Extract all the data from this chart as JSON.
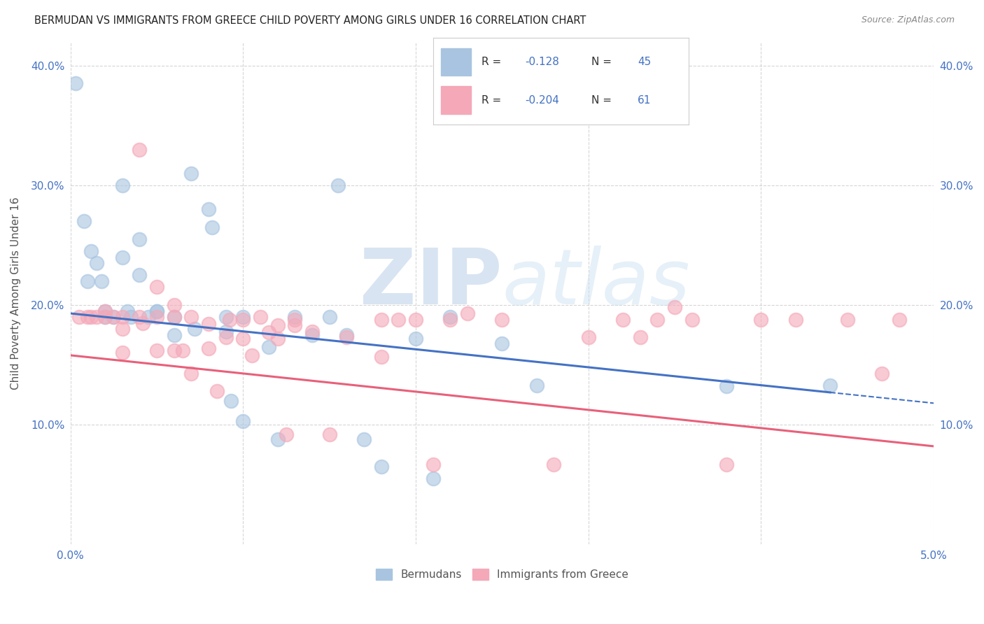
{
  "title": "BERMUDAN VS IMMIGRANTS FROM GREECE CHILD POVERTY AMONG GIRLS UNDER 16 CORRELATION CHART",
  "source": "Source: ZipAtlas.com",
  "ylabel": "Child Poverty Among Girls Under 16",
  "xlim": [
    0.0,
    0.05
  ],
  "ylim": [
    0.0,
    0.42
  ],
  "yticks": [
    0.1,
    0.2,
    0.3,
    0.4
  ],
  "ytick_labels": [
    "10.0%",
    "20.0%",
    "30.0%",
    "40.0%"
  ],
  "xticks": [
    0.0,
    0.01,
    0.02,
    0.03,
    0.04,
    0.05
  ],
  "xtick_labels": [
    "0.0%",
    "",
    "",
    "",
    "",
    "5.0%"
  ],
  "bermuda_R": -0.128,
  "bermuda_N": 45,
  "greece_R": -0.204,
  "greece_N": 61,
  "bermuda_color": "#a8c4e0",
  "greece_color": "#f4a8b8",
  "bermuda_line_color": "#4472c4",
  "greece_line_color": "#e8607a",
  "tick_color": "#4472c4",
  "watermark_color": "#c8dff0",
  "bermuda_line_x0": 0.0,
  "bermuda_line_y0": 0.193,
  "bermuda_line_x1": 0.044,
  "bermuda_line_y1": 0.127,
  "greece_line_x0": 0.0,
  "greece_line_y0": 0.158,
  "greece_line_x1": 0.05,
  "greece_line_y1": 0.082,
  "bermuda_scatter_x": [
    0.0003,
    0.0008,
    0.001,
    0.0012,
    0.0015,
    0.0018,
    0.002,
    0.002,
    0.0025,
    0.003,
    0.003,
    0.0033,
    0.0035,
    0.004,
    0.004,
    0.0045,
    0.005,
    0.005,
    0.006,
    0.006,
    0.007,
    0.0072,
    0.008,
    0.0082,
    0.009,
    0.009,
    0.0093,
    0.01,
    0.01,
    0.0115,
    0.012,
    0.013,
    0.014,
    0.015,
    0.0155,
    0.016,
    0.017,
    0.018,
    0.02,
    0.021,
    0.022,
    0.025,
    0.027,
    0.038,
    0.044
  ],
  "bermuda_scatter_y": [
    0.385,
    0.27,
    0.22,
    0.245,
    0.235,
    0.22,
    0.195,
    0.19,
    0.19,
    0.3,
    0.24,
    0.195,
    0.19,
    0.255,
    0.225,
    0.19,
    0.195,
    0.195,
    0.19,
    0.175,
    0.31,
    0.18,
    0.28,
    0.265,
    0.19,
    0.178,
    0.12,
    0.103,
    0.19,
    0.165,
    0.088,
    0.19,
    0.175,
    0.19,
    0.3,
    0.175,
    0.088,
    0.065,
    0.172,
    0.055,
    0.19,
    0.168,
    0.133,
    0.132,
    0.133
  ],
  "greece_scatter_x": [
    0.0005,
    0.001,
    0.0012,
    0.0015,
    0.002,
    0.002,
    0.0025,
    0.003,
    0.003,
    0.003,
    0.004,
    0.004,
    0.0042,
    0.005,
    0.005,
    0.005,
    0.006,
    0.006,
    0.006,
    0.0065,
    0.007,
    0.007,
    0.008,
    0.008,
    0.0085,
    0.009,
    0.0092,
    0.01,
    0.01,
    0.0105,
    0.011,
    0.0115,
    0.012,
    0.012,
    0.0125,
    0.013,
    0.013,
    0.014,
    0.015,
    0.016,
    0.018,
    0.018,
    0.019,
    0.02,
    0.021,
    0.022,
    0.023,
    0.025,
    0.028,
    0.03,
    0.032,
    0.033,
    0.034,
    0.035,
    0.036,
    0.038,
    0.04,
    0.042,
    0.045,
    0.047,
    0.048
  ],
  "greece_scatter_y": [
    0.19,
    0.19,
    0.19,
    0.19,
    0.195,
    0.19,
    0.19,
    0.19,
    0.18,
    0.16,
    0.33,
    0.19,
    0.185,
    0.215,
    0.19,
    0.162,
    0.2,
    0.19,
    0.162,
    0.162,
    0.19,
    0.143,
    0.184,
    0.164,
    0.128,
    0.173,
    0.188,
    0.188,
    0.172,
    0.158,
    0.19,
    0.177,
    0.183,
    0.172,
    0.092,
    0.183,
    0.188,
    0.178,
    0.092,
    0.173,
    0.188,
    0.157,
    0.188,
    0.188,
    0.067,
    0.188,
    0.193,
    0.188,
    0.067,
    0.173,
    0.188,
    0.173,
    0.188,
    0.198,
    0.188,
    0.067,
    0.188,
    0.188,
    0.188,
    0.143,
    0.188
  ]
}
